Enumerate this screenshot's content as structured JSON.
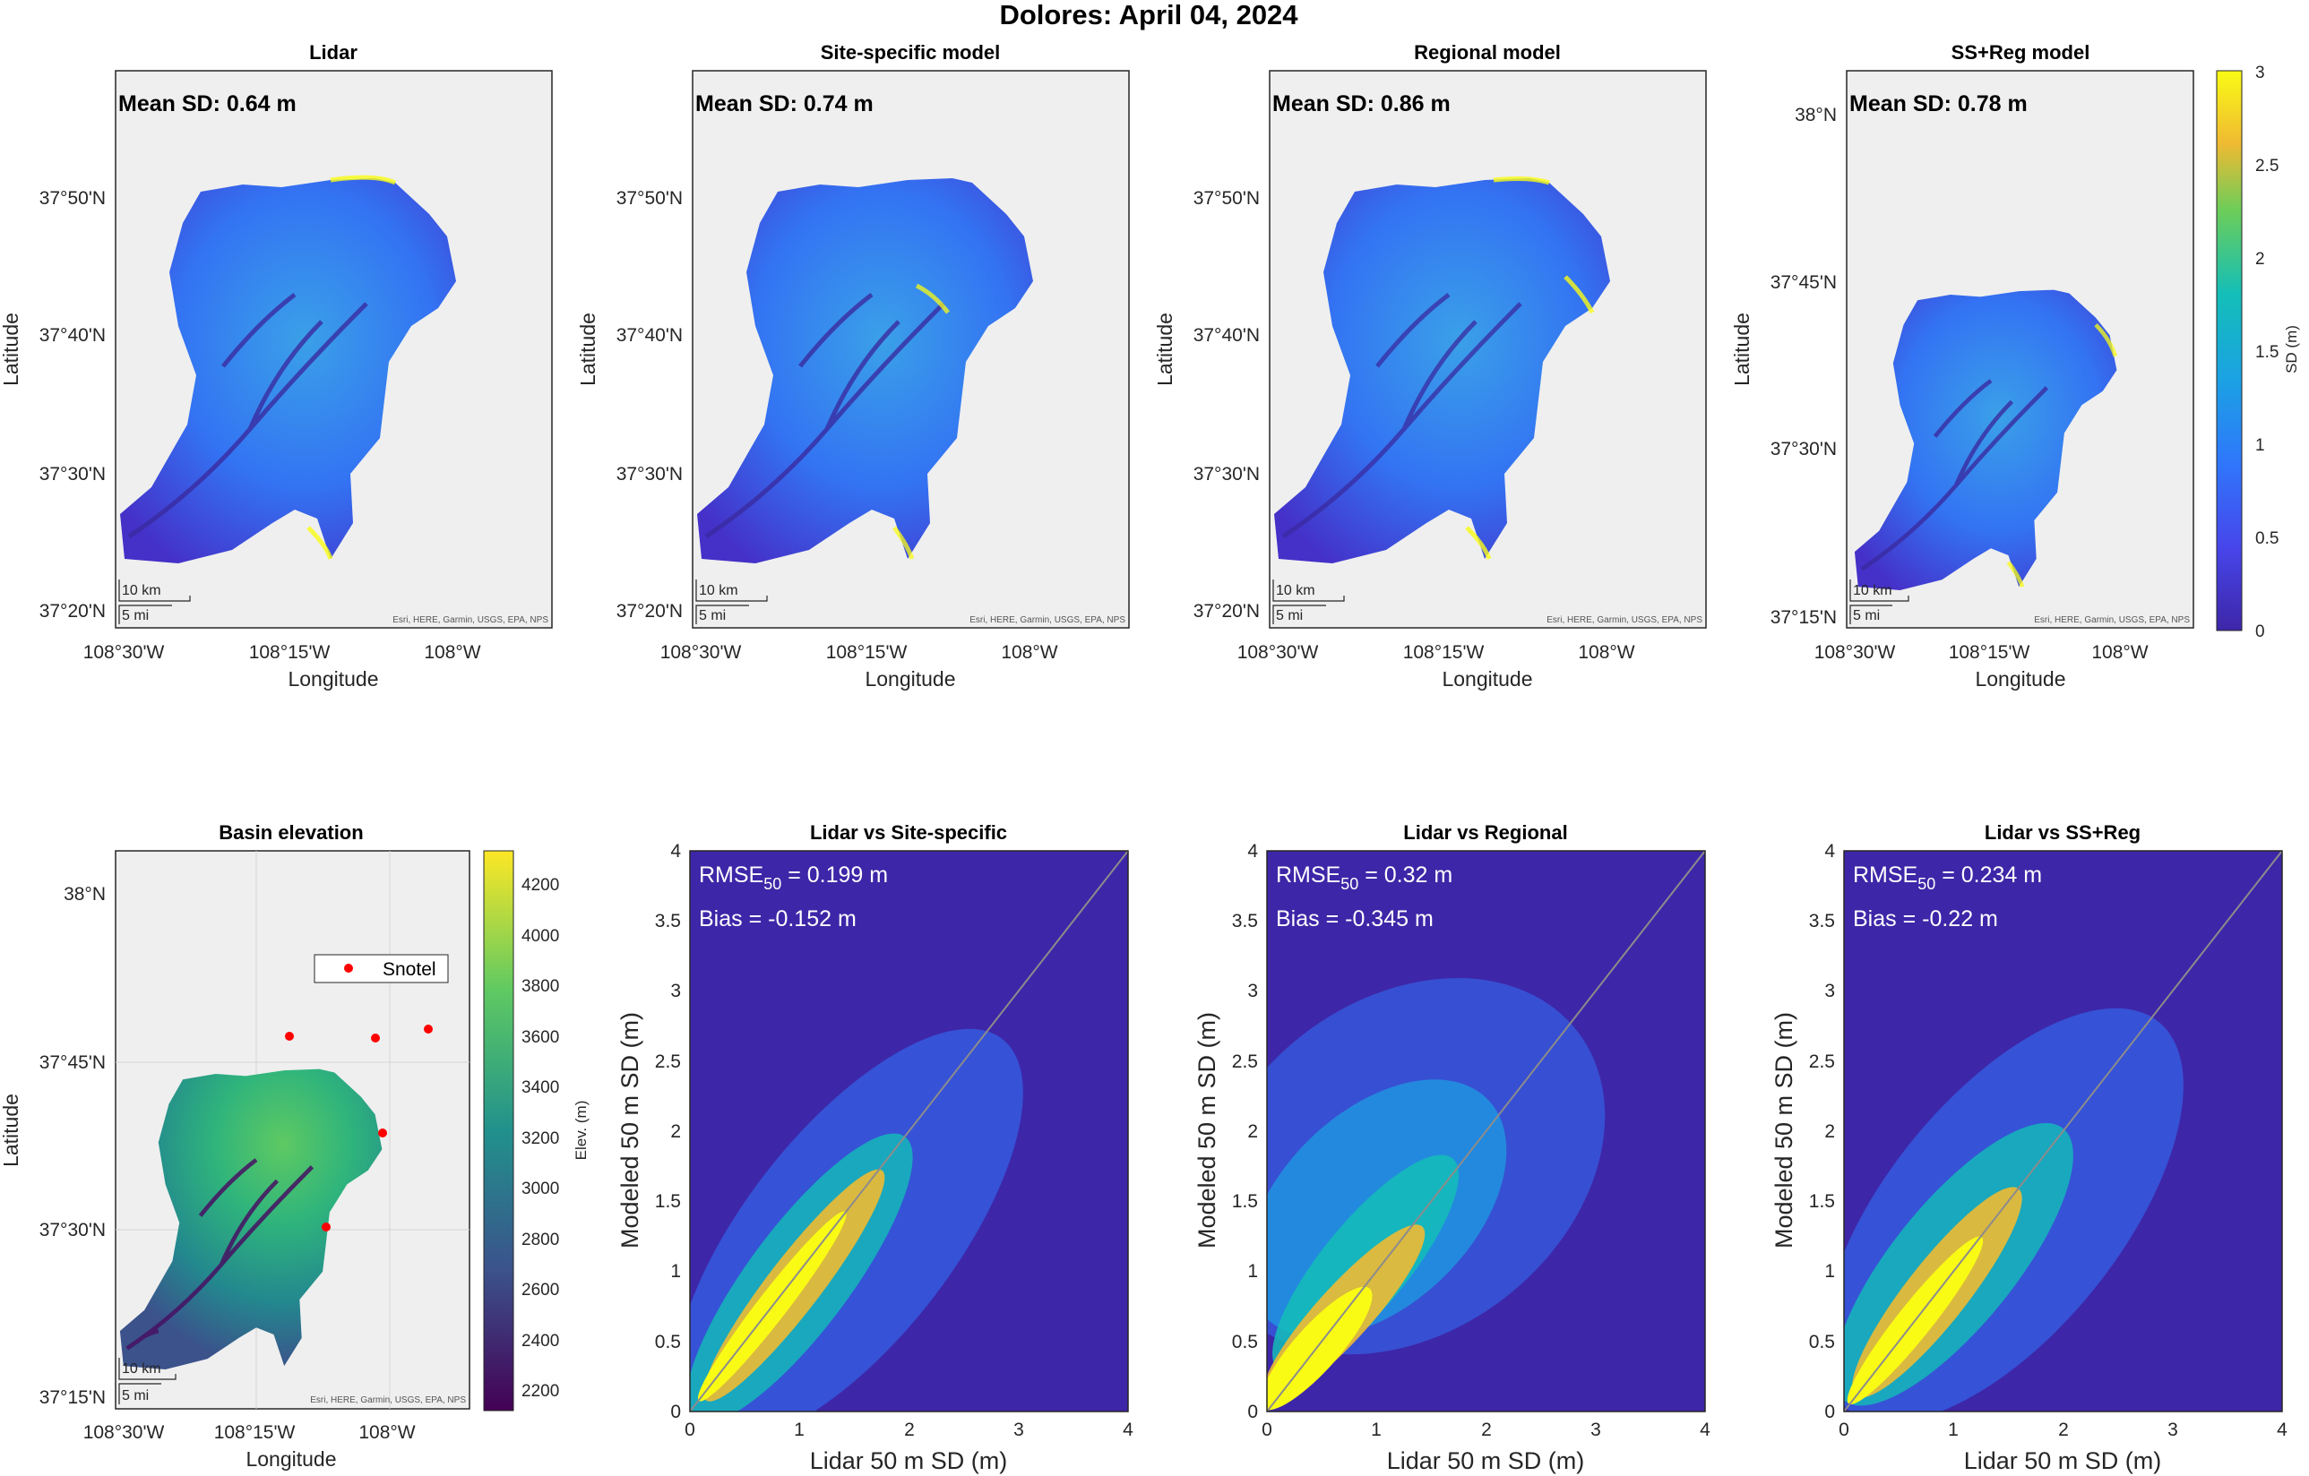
{
  "figure": {
    "title": "Dolores: April 04, 2024"
  },
  "attribution": "Esri, HERE, Garmin, USGS, EPA, NPS",
  "scalebar": {
    "km": "10 km",
    "mi": "5 mi"
  },
  "colors": {
    "parula_low": "#3e26a8",
    "parula_mid": "#13beb8",
    "parula_high": "#f9fb15",
    "map_bg": "#efefef",
    "viridis_low": "#440154",
    "viridis_high": "#fde725",
    "snotel": "#ff0000"
  },
  "chart_data": [
    {
      "type": "heatmap",
      "panel": "map",
      "title": "Lidar",
      "mean_label": "Mean SD: 0.64 m",
      "xlabel": "Longitude",
      "ylabel": "Latitude",
      "xticks": [
        "108°30'W",
        "108°15'W",
        "108°W"
      ],
      "yticks": [
        "37°50'N",
        "37°40'N",
        "37°30'N",
        "37°20'N"
      ]
    },
    {
      "type": "heatmap",
      "panel": "map",
      "title": "Site-specific model",
      "mean_label": "Mean SD: 0.74 m",
      "xlabel": "Longitude",
      "ylabel": "Latitude",
      "xticks": [
        "108°30'W",
        "108°15'W",
        "108°W"
      ],
      "yticks": [
        "37°50'N",
        "37°40'N",
        "37°30'N",
        "37°20'N"
      ]
    },
    {
      "type": "heatmap",
      "panel": "map",
      "title": "Regional model",
      "mean_label": "Mean SD: 0.86 m",
      "xlabel": "Longitude",
      "ylabel": "Latitude",
      "xticks": [
        "108°30'W",
        "108°15'W",
        "108°W"
      ],
      "yticks": [
        "37°50'N",
        "37°40'N",
        "37°30'N",
        "37°20'N"
      ]
    },
    {
      "type": "heatmap",
      "panel": "map",
      "title": "SS+Reg model",
      "mean_label": "Mean SD: 0.78 m",
      "xlabel": "Longitude",
      "ylabel": "Latitude",
      "xticks": [
        "108°30'W",
        "108°15'W",
        "108°W"
      ],
      "yticks": [
        "38°N",
        "37°45'N",
        "37°30'N",
        "37°15'N"
      ],
      "colorbar": {
        "label": "SD (m)",
        "ticks": [
          "0",
          "0.5",
          "1",
          "1.5",
          "2",
          "2.5",
          "3"
        ]
      }
    },
    {
      "type": "heatmap",
      "panel": "elevation",
      "title": "Basin elevation",
      "xlabel": "Longitude",
      "ylabel": "Latitude",
      "xticks": [
        "108°30'W",
        "108°15'W",
        "108°W"
      ],
      "yticks": [
        "38°N",
        "37°45'N",
        "37°30'N",
        "37°15'N"
      ],
      "legend": "Snotel",
      "colorbar": {
        "label": "Elev. (m)",
        "ticks": [
          "2200",
          "2400",
          "2600",
          "2800",
          "3000",
          "3200",
          "3400",
          "3600",
          "3800",
          "4000",
          "4200"
        ]
      }
    },
    {
      "type": "heatmap",
      "panel": "density",
      "title": "Lidar vs Site-specific",
      "xlabel": "Lidar 50 m SD (m)",
      "ylabel": "Modeled 50 m SD (m)",
      "xlim": [
        0,
        4
      ],
      "ylim": [
        0,
        4
      ],
      "ticks": [
        "0",
        "0.5",
        "1",
        "1.5",
        "2",
        "2.5",
        "3",
        "3.5",
        "4"
      ],
      "xticks": [
        "0",
        "1",
        "2",
        "3",
        "4"
      ],
      "rmse_label": "RMSE",
      "rmse_sub": "50",
      "rmse_value": " = 0.199 m",
      "bias_label": "Bias = -0.152 m",
      "rmse": 0.199,
      "bias": -0.152
    },
    {
      "type": "heatmap",
      "panel": "density",
      "title": "Lidar vs Regional",
      "xlabel": "Lidar 50 m SD (m)",
      "ylabel": "Modeled 50 m SD (m)",
      "xlim": [
        0,
        4
      ],
      "ylim": [
        0,
        4
      ],
      "ticks": [
        "0",
        "0.5",
        "1",
        "1.5",
        "2",
        "2.5",
        "3",
        "3.5",
        "4"
      ],
      "xticks": [
        "0",
        "1",
        "2",
        "3",
        "4"
      ],
      "rmse_label": "RMSE",
      "rmse_sub": "50",
      "rmse_value": " = 0.32 m",
      "bias_label": "Bias = -0.345 m",
      "rmse": 0.32,
      "bias": -0.345
    },
    {
      "type": "heatmap",
      "panel": "density",
      "title": "Lidar vs SS+Reg",
      "xlabel": "Lidar 50 m SD (m)",
      "ylabel": "Modeled 50 m SD (m)",
      "xlim": [
        0,
        4
      ],
      "ylim": [
        0,
        4
      ],
      "ticks": [
        "0",
        "0.5",
        "1",
        "1.5",
        "2",
        "2.5",
        "3",
        "3.5",
        "4"
      ],
      "xticks": [
        "0",
        "1",
        "2",
        "3",
        "4"
      ],
      "rmse_label": "RMSE",
      "rmse_sub": "50",
      "rmse_value": " = 0.234 m",
      "bias_label": "Bias = -0.22 m",
      "rmse": 0.234,
      "bias": -0.22
    }
  ]
}
